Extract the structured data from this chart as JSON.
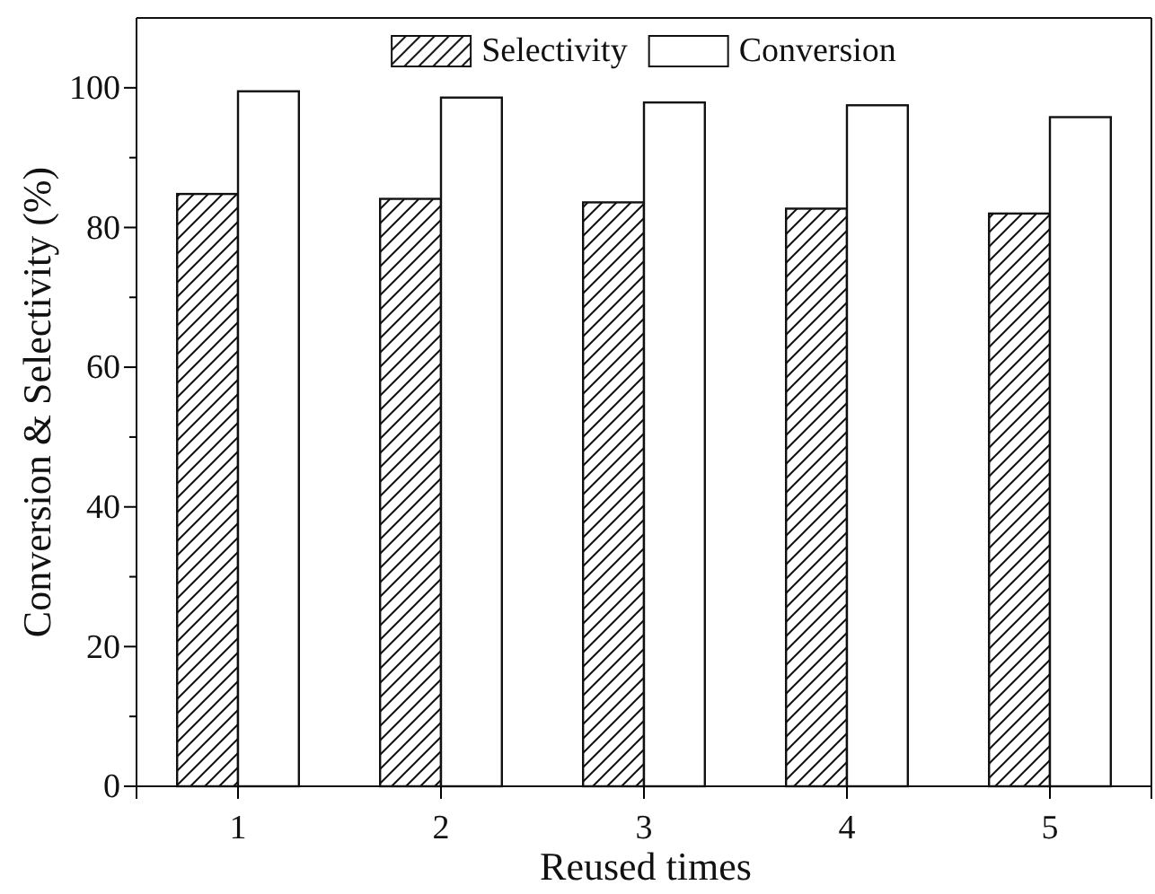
{
  "chart_data": {
    "type": "bar",
    "xlabel": "Reused times",
    "ylabel": "Conversion & Selectivity (%)",
    "categories": [
      "1",
      "2",
      "3",
      "4",
      "5"
    ],
    "series": [
      {
        "name": "Selectivity",
        "color": "#111111",
        "values": [
          84.8,
          84.1,
          83.6,
          82.7,
          82.0
        ]
      },
      {
        "name": "Conversion",
        "color": "#ffffff",
        "values": [
          99.5,
          98.6,
          97.9,
          97.5,
          95.8
        ]
      }
    ],
    "ylim": [
      0,
      110
    ],
    "yticks": [
      0,
      {
        "value": 10,
        "label": null
      },
      20,
      {
        "value": 30,
        "label": null
      },
      40,
      {
        "value": 50,
        "label": null
      },
      60,
      {
        "value": 70,
        "label": null
      },
      80,
      {
        "value": 90,
        "label": null
      },
      100
    ],
    "legend": "top",
    "grid": false
  }
}
